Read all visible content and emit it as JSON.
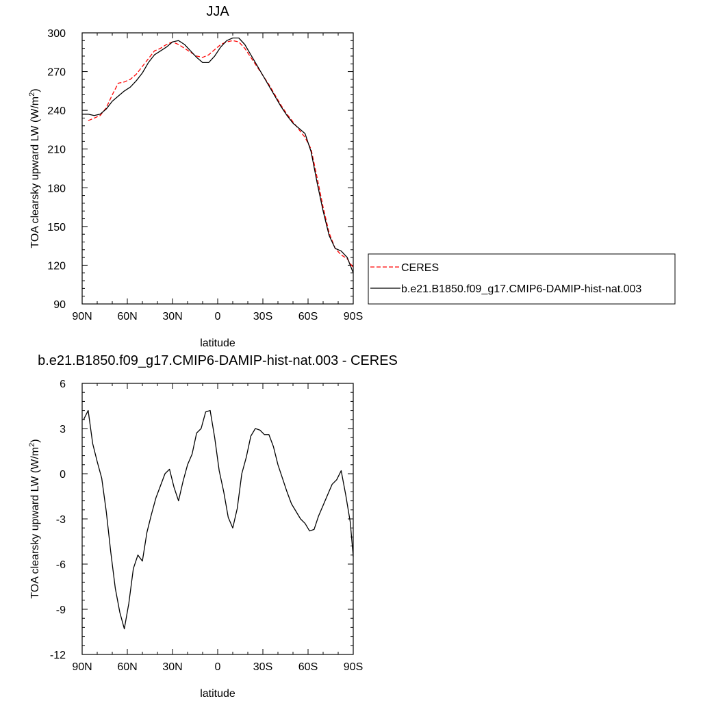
{
  "chart_data": [
    {
      "type": "line",
      "title": "JJA",
      "xlabel": "latitude",
      "ylabel": "TOA clearsky upward LW (W/m²)",
      "ylabel_base": "TOA clearsky upward LW (W/m",
      "ylabel_sup": "2",
      "ylabel_end": ")",
      "xlim": [
        90,
        -90
      ],
      "ylim": [
        90,
        300
      ],
      "x_ticks": [
        {
          "value": 90,
          "label": "90N"
        },
        {
          "value": 60,
          "label": "60N"
        },
        {
          "value": 30,
          "label": "30N"
        },
        {
          "value": 0,
          "label": "0"
        },
        {
          "value": -30,
          "label": "30S"
        },
        {
          "value": -60,
          "label": "60S"
        },
        {
          "value": -90,
          "label": "90S"
        }
      ],
      "y_ticks": [
        90,
        120,
        150,
        180,
        210,
        240,
        270,
        300
      ],
      "legend_position": "right",
      "series": [
        {
          "name": "CERES",
          "color": "#ff0000",
          "dash": "dashed",
          "x": [
            86,
            82,
            78,
            74,
            70,
            66,
            62,
            58,
            54,
            50,
            46,
            42,
            38,
            34,
            30,
            26,
            22,
            18,
            14,
            10,
            6,
            2,
            -2,
            -6,
            -10,
            -14,
            -18,
            -22,
            -26,
            -30,
            -34,
            -38,
            -42,
            -46,
            -50,
            -54,
            -58,
            -62,
            -66,
            -70,
            -74,
            -78,
            -82,
            -86,
            -90
          ],
          "y": [
            232,
            234,
            236,
            242,
            252,
            261,
            262,
            264,
            268,
            274,
            280,
            286,
            288,
            291,
            293,
            291,
            288,
            285,
            282,
            281,
            283,
            287,
            291,
            293,
            294,
            293,
            288,
            281,
            274,
            267,
            260,
            252,
            244,
            237,
            231,
            225,
            219,
            210,
            188,
            165,
            145,
            133,
            128,
            125,
            118
          ]
        },
        {
          "name": "b.e21.B1850.f09_g17.CMIP6-DAMIP-hist-nat.003",
          "color": "#000000",
          "dash": "solid",
          "x": [
            90,
            86,
            82,
            78,
            74,
            70,
            66,
            62,
            58,
            54,
            50,
            46,
            42,
            38,
            34,
            30,
            26,
            22,
            18,
            14,
            10,
            6,
            2,
            -2,
            -6,
            -10,
            -14,
            -18,
            -22,
            -26,
            -30,
            -34,
            -38,
            -42,
            -46,
            -50,
            -54,
            -58,
            -62,
            -66,
            -70,
            -74,
            -78,
            -82,
            -86,
            -90
          ],
          "y": [
            237,
            237,
            236,
            237,
            241,
            247,
            251,
            255,
            258,
            263,
            269,
            277,
            283,
            286,
            289,
            293,
            294,
            291,
            286,
            281,
            277,
            277,
            282,
            289,
            294,
            296,
            296,
            291,
            283,
            275,
            267,
            259,
            251,
            243,
            236,
            230,
            226,
            222,
            208,
            184,
            162,
            143,
            133,
            131,
            126,
            114
          ]
        }
      ]
    },
    {
      "type": "line",
      "title": "b.e21.B1850.f09_g17.CMIP6-DAMIP-hist-nat.003 - CERES",
      "xlabel": "latitude",
      "ylabel": "TOA clearsky upward LW (W/m²)",
      "ylabel_base": "TOA clearsky upward LW (W/m",
      "ylabel_sup": "2",
      "ylabel_end": ")",
      "xlim": [
        90,
        -90
      ],
      "ylim": [
        -12,
        6
      ],
      "x_ticks": [
        {
          "value": 90,
          "label": "90N"
        },
        {
          "value": 60,
          "label": "60N"
        },
        {
          "value": 30,
          "label": "30N"
        },
        {
          "value": 0,
          "label": "0"
        },
        {
          "value": -30,
          "label": "30S"
        },
        {
          "value": -60,
          "label": "60S"
        },
        {
          "value": -90,
          "label": "90S"
        }
      ],
      "y_ticks": [
        -12,
        -9,
        -6,
        -3,
        0,
        3,
        6
      ],
      "series": [
        {
          "name": "",
          "color": "#000000",
          "dash": "solid",
          "x": [
            89,
            86,
            83,
            80,
            77,
            74,
            71,
            68,
            65,
            62,
            59,
            56,
            53,
            50,
            47,
            44,
            41,
            38,
            35,
            32,
            29,
            26,
            23,
            20,
            17,
            14,
            11,
            8,
            5,
            2,
            -1,
            -4,
            -7,
            -10,
            -13,
            -16,
            -19,
            -22,
            -25,
            -28,
            -31,
            -34,
            -37,
            -40,
            -43,
            -46,
            -49,
            -52,
            -55,
            -58,
            -61,
            -64,
            -67,
            -70,
            -73,
            -76,
            -79,
            -82,
            -85,
            -88,
            -90
          ],
          "y": [
            3.6,
            4.2,
            2.0,
            0.8,
            -0.3,
            -2.5,
            -5.2,
            -7.6,
            -9.2,
            -10.3,
            -8.6,
            -6.3,
            -5.4,
            -5.8,
            -3.9,
            -2.7,
            -1.6,
            -0.8,
            0.0,
            0.3,
            -0.9,
            -1.8,
            -0.5,
            0.6,
            1.3,
            2.7,
            3.0,
            4.1,
            4.2,
            2.4,
            0.2,
            -1.2,
            -2.9,
            -3.6,
            -2.3,
            0.0,
            1.1,
            2.5,
            3.0,
            2.9,
            2.6,
            2.6,
            1.8,
            0.6,
            -0.3,
            -1.2,
            -2.0,
            -2.5,
            -3.0,
            -3.3,
            -3.8,
            -3.7,
            -2.8,
            -2.1,
            -1.4,
            -0.7,
            -0.4,
            0.2,
            -1.4,
            -3.2,
            -5.5
          ]
        }
      ]
    }
  ]
}
